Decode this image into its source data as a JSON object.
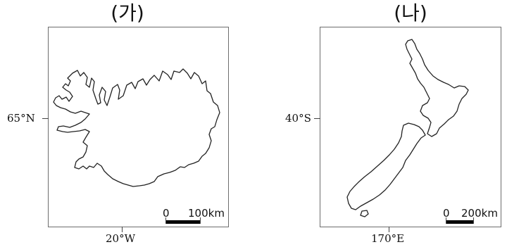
{
  "panels": [
    {
      "label": "(가)",
      "latitude_label": "65°N",
      "longitude_label": "20°W",
      "scale": {
        "zero": "0",
        "distance": "100km"
      }
    },
    {
      "label": "(나)",
      "latitude_label": "40°S",
      "longitude_label": "170°E",
      "scale": {
        "zero": "0",
        "distance": "200km"
      }
    }
  ]
}
